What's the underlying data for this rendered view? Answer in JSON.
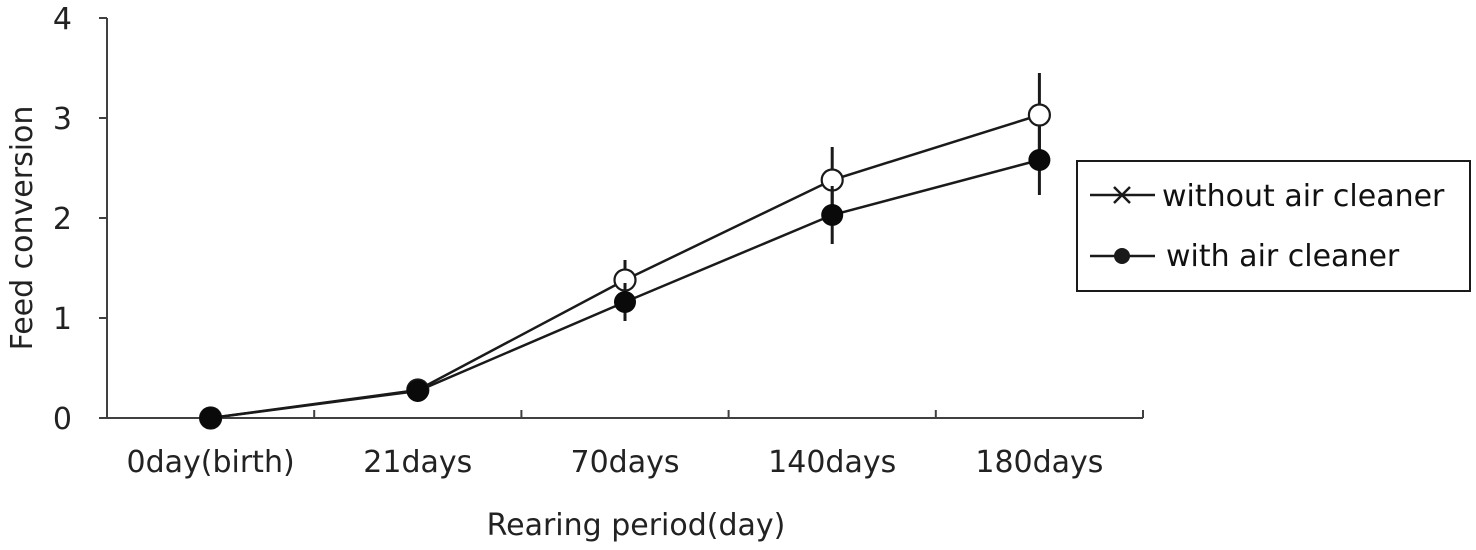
{
  "chart_data": {
    "type": "line",
    "categories": [
      "0day(birth)",
      "21days",
      "70days",
      "140days",
      "180days"
    ],
    "xlabel": "Rearing period(day)",
    "ylabel": "Feed conversion",
    "ylim": [
      0,
      4
    ],
    "yticks": [
      "0",
      "1",
      "2",
      "3",
      "4"
    ],
    "legend_position": "right",
    "series": [
      {
        "name": "without air cleaner",
        "marker": "open-circle",
        "values": [
          0,
          0.28,
          1.38,
          2.38,
          3.03
        ],
        "error": [
          0,
          0.05,
          0.2,
          0.33,
          0.42
        ]
      },
      {
        "name": "with air cleaner",
        "marker": "filled-circle",
        "values": [
          0,
          0.27,
          1.16,
          2.03,
          2.58
        ],
        "error": [
          0,
          0.05,
          0.19,
          0.29,
          0.35
        ]
      }
    ],
    "colors": {
      "line": "#1a1a1a",
      "axis": "#404040"
    }
  }
}
